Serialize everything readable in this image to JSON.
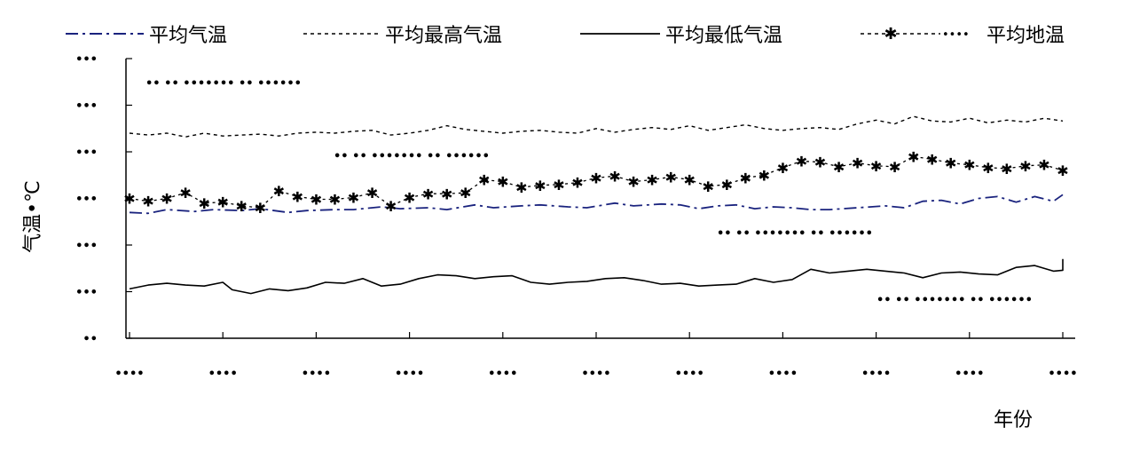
{
  "chart_data": {
    "type": "line",
    "xlabel": "年份",
    "ylabel": "气温•℃",
    "x_tick_labels": [
      "••••",
      "••••",
      "••••",
      "••••",
      "••••",
      "••••",
      "••••",
      "••••",
      "••••",
      "••••",
      "••••"
    ],
    "y_tick_labels": [
      "••",
      "•••",
      "•••",
      "•••",
      "•••",
      "•••",
      "•••"
    ],
    "y_ticks": [
      0,
      5,
      10,
      15,
      20,
      25,
      30
    ],
    "ylim": [
      0,
      30
    ],
    "x_ticks": [
      1,
      11,
      21,
      31,
      41,
      51,
      61,
      71,
      81,
      91,
      101
    ],
    "xlim": [
      1,
      101
    ],
    "legend_position": "top",
    "series": [
      {
        "name": "平均气温",
        "style": "dashdot",
        "color": "#1a237e",
        "points": [
          [
            1,
            13.5
          ],
          [
            3,
            13.4
          ],
          [
            5,
            13.8
          ],
          [
            8,
            13.6
          ],
          [
            10,
            13.8
          ],
          [
            13,
            13.7
          ],
          [
            15,
            13.9
          ],
          [
            18,
            13.5
          ],
          [
            20,
            13.7
          ],
          [
            23,
            13.8
          ],
          [
            25,
            13.8
          ],
          [
            28,
            14.1
          ],
          [
            30,
            13.9
          ],
          [
            33,
            14.0
          ],
          [
            35,
            13.8
          ],
          [
            38,
            14.3
          ],
          [
            40,
            14.0
          ],
          [
            43,
            14.2
          ],
          [
            45,
            14.3
          ],
          [
            48,
            14.1
          ],
          [
            50,
            14.0
          ],
          [
            53,
            14.5
          ],
          [
            55,
            14.2
          ],
          [
            58,
            14.4
          ],
          [
            60,
            14.3
          ],
          [
            62,
            13.9
          ],
          [
            64,
            14.2
          ],
          [
            66,
            14.3
          ],
          [
            68,
            13.9
          ],
          [
            70,
            14.1
          ],
          [
            72,
            14.0
          ],
          [
            74,
            13.8
          ],
          [
            76,
            13.8
          ],
          [
            79,
            14.0
          ],
          [
            82,
            14.2
          ],
          [
            84,
            14.0
          ],
          [
            86,
            14.7
          ],
          [
            88,
            14.8
          ],
          [
            90,
            14.4
          ],
          [
            92,
            15.0
          ],
          [
            94,
            15.2
          ],
          [
            96,
            14.6
          ],
          [
            98,
            15.2
          ],
          [
            100,
            14.7
          ],
          [
            101,
            15.4
          ]
        ]
      },
      {
        "name": "平均最高气温",
        "style": "dotted",
        "color": "#000000",
        "points": [
          [
            1,
            22.0
          ],
          [
            3,
            21.8
          ],
          [
            5,
            22.0
          ],
          [
            7,
            21.6
          ],
          [
            9,
            22.0
          ],
          [
            11,
            21.7
          ],
          [
            13,
            21.8
          ],
          [
            15,
            21.9
          ],
          [
            17,
            21.7
          ],
          [
            19,
            22.0
          ],
          [
            21,
            22.1
          ],
          [
            23,
            22.0
          ],
          [
            25,
            22.2
          ],
          [
            27,
            22.3
          ],
          [
            29,
            21.8
          ],
          [
            31,
            22.0
          ],
          [
            33,
            22.3
          ],
          [
            35,
            22.8
          ],
          [
            37,
            22.4
          ],
          [
            39,
            22.2
          ],
          [
            41,
            22.0
          ],
          [
            43,
            22.2
          ],
          [
            45,
            22.3
          ],
          [
            47,
            22.1
          ],
          [
            49,
            22.0
          ],
          [
            51,
            22.5
          ],
          [
            53,
            22.1
          ],
          [
            55,
            22.4
          ],
          [
            57,
            22.6
          ],
          [
            59,
            22.4
          ],
          [
            61,
            22.8
          ],
          [
            63,
            22.3
          ],
          [
            65,
            22.6
          ],
          [
            67,
            22.9
          ],
          [
            69,
            22.5
          ],
          [
            71,
            22.3
          ],
          [
            73,
            22.5
          ],
          [
            75,
            22.6
          ],
          [
            77,
            22.4
          ],
          [
            79,
            23.0
          ],
          [
            81,
            23.4
          ],
          [
            83,
            23.0
          ],
          [
            85,
            23.8
          ],
          [
            87,
            23.3
          ],
          [
            89,
            23.2
          ],
          [
            91,
            23.6
          ],
          [
            93,
            23.1
          ],
          [
            95,
            23.4
          ],
          [
            97,
            23.2
          ],
          [
            99,
            23.6
          ],
          [
            101,
            23.3
          ]
        ]
      },
      {
        "name": "平均最低气温",
        "style": "solid",
        "color": "#000000",
        "points": [
          [
            1,
            5.3
          ],
          [
            3,
            5.7
          ],
          [
            5,
            5.9
          ],
          [
            7,
            5.7
          ],
          [
            9,
            5.6
          ],
          [
            11,
            6.0
          ],
          [
            12,
            5.2
          ],
          [
            14,
            4.8
          ],
          [
            16,
            5.3
          ],
          [
            18,
            5.1
          ],
          [
            20,
            5.4
          ],
          [
            22,
            6.0
          ],
          [
            24,
            5.9
          ],
          [
            26,
            6.4
          ],
          [
            28,
            5.6
          ],
          [
            30,
            5.8
          ],
          [
            32,
            6.4
          ],
          [
            34,
            6.8
          ],
          [
            36,
            6.7
          ],
          [
            38,
            6.4
          ],
          [
            40,
            6.6
          ],
          [
            42,
            6.7
          ],
          [
            44,
            6.0
          ],
          [
            46,
            5.8
          ],
          [
            48,
            6.0
          ],
          [
            50,
            6.1
          ],
          [
            52,
            6.4
          ],
          [
            54,
            6.5
          ],
          [
            56,
            6.2
          ],
          [
            58,
            5.8
          ],
          [
            60,
            5.9
          ],
          [
            62,
            5.6
          ],
          [
            64,
            5.7
          ],
          [
            66,
            5.8
          ],
          [
            68,
            6.4
          ],
          [
            70,
            6.0
          ],
          [
            72,
            6.3
          ],
          [
            74,
            7.4
          ],
          [
            76,
            7.0
          ],
          [
            78,
            7.2
          ],
          [
            80,
            7.4
          ],
          [
            82,
            7.2
          ],
          [
            84,
            7.0
          ],
          [
            86,
            6.5
          ],
          [
            88,
            7.0
          ],
          [
            90,
            7.1
          ],
          [
            92,
            6.9
          ],
          [
            94,
            6.8
          ],
          [
            96,
            7.6
          ],
          [
            98,
            7.8
          ],
          [
            100,
            7.2
          ],
          [
            101,
            7.3
          ],
          [
            103,
            8.9
          ],
          [
            104,
            7.2
          ],
          [
            106,
            7.7
          ],
          [
            108,
            8.0
          ],
          [
            109,
            7.3
          ],
          [
            101,
            8.5
          ]
        ]
      },
      {
        "name": "平均地温",
        "style": "dotted-star",
        "color": "#000000",
        "points": [
          [
            1,
            15.0
          ],
          [
            3,
            14.7
          ],
          [
            5,
            15.0
          ],
          [
            7,
            15.6
          ],
          [
            9,
            14.5
          ],
          [
            11,
            14.6
          ],
          [
            13,
            14.2
          ],
          [
            15,
            14.0
          ],
          [
            17,
            15.8
          ],
          [
            19,
            15.2
          ],
          [
            21,
            14.9
          ],
          [
            23,
            14.9
          ],
          [
            25,
            15.1
          ],
          [
            27,
            15.6
          ],
          [
            29,
            14.2
          ],
          [
            31,
            15.1
          ],
          [
            33,
            15.5
          ],
          [
            35,
            15.5
          ],
          [
            37,
            15.6
          ],
          [
            39,
            17.0
          ],
          [
            41,
            16.8
          ],
          [
            43,
            16.2
          ],
          [
            45,
            16.4
          ],
          [
            47,
            16.5
          ],
          [
            49,
            16.7
          ],
          [
            51,
            17.2
          ],
          [
            53,
            17.4
          ],
          [
            55,
            16.8
          ],
          [
            57,
            17.0
          ],
          [
            59,
            17.3
          ],
          [
            61,
            17.0
          ],
          [
            63,
            16.3
          ],
          [
            65,
            16.5
          ],
          [
            67,
            17.2
          ],
          [
            69,
            17.5
          ],
          [
            71,
            18.3
          ],
          [
            73,
            19.0
          ],
          [
            75,
            18.9
          ],
          [
            77,
            18.4
          ],
          [
            79,
            18.8
          ],
          [
            81,
            18.5
          ],
          [
            83,
            18.4
          ],
          [
            85,
            19.5
          ],
          [
            87,
            19.2
          ],
          [
            89,
            18.8
          ],
          [
            91,
            18.6
          ],
          [
            93,
            18.3
          ],
          [
            95,
            18.2
          ],
          [
            97,
            18.5
          ],
          [
            99,
            18.6
          ],
          [
            101,
            18.0
          ]
        ]
      }
    ]
  },
  "legend": [
    {
      "label": "平均气温",
      "style": "dashdot"
    },
    {
      "label": "平均最高气温",
      "style": "dotted"
    },
    {
      "label": "平均最低气温",
      "style": "solid"
    },
    {
      "label": "平均地温",
      "style": "dotted-star"
    }
  ],
  "annotations": [
    {
      "text": "•• •• ••••••• •• ••••••"
    },
    {
      "text": "•• •• ••••••• •• ••••••"
    },
    {
      "text": "•• •• ••••••• •• ••••••"
    },
    {
      "text": "•• •• ••••••• •• ••••••"
    }
  ]
}
